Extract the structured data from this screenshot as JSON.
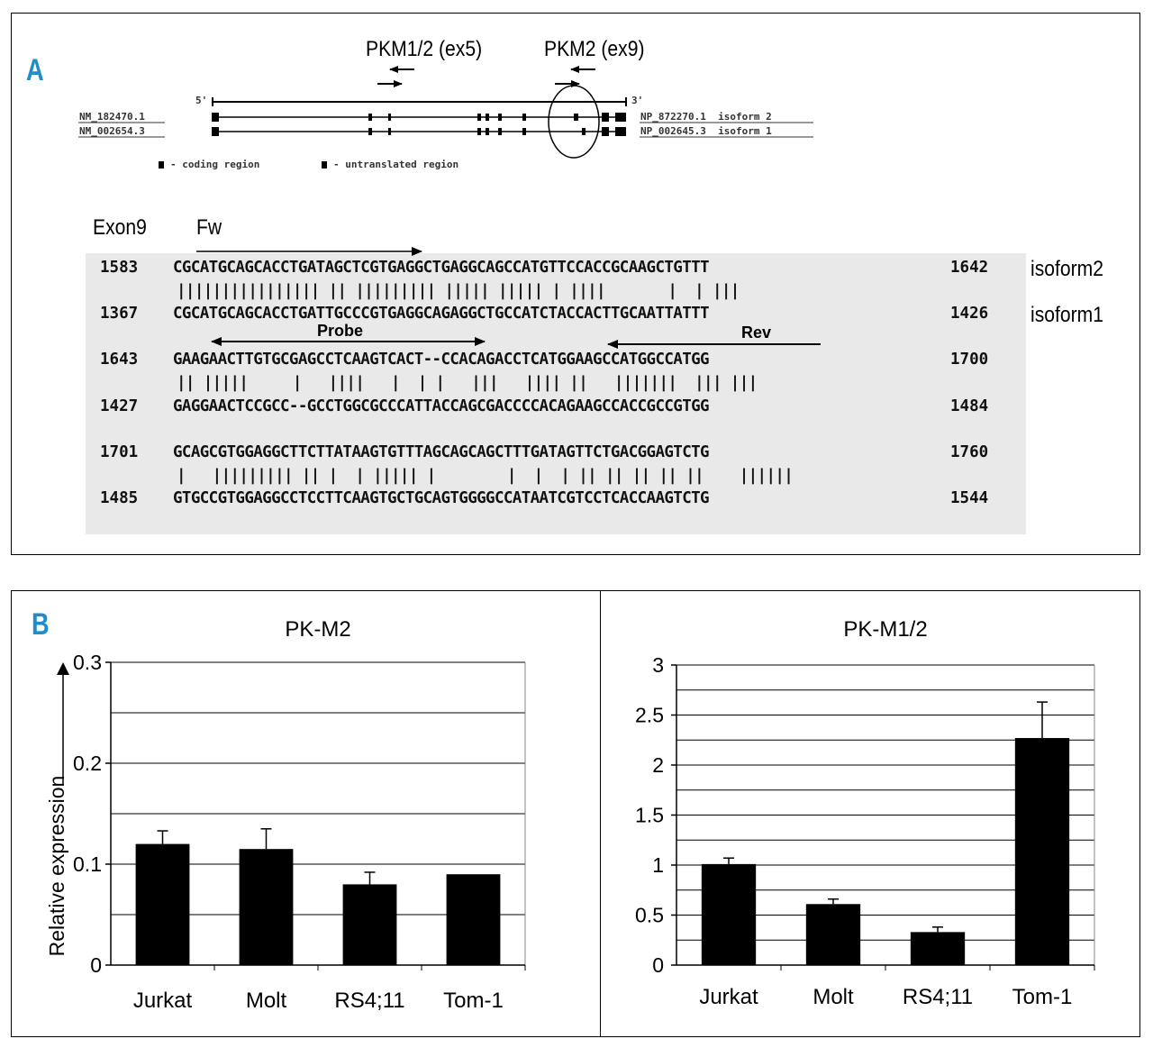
{
  "panelA": {
    "letter": "A",
    "primer_labels": [
      "PKM1/2 (ex5)",
      "PKM2 (ex9)"
    ],
    "five_prime": "5'",
    "three_prime": "3'",
    "transcripts": [
      {
        "left": "NM_182470.1",
        "right": "NP_872270.1  isoform 2"
      },
      {
        "left": "NM_002654.3",
        "right": "NP_002645.3  isoform 1"
      }
    ],
    "legend": {
      "coding": "- coding region",
      "untranslated": "- untranslated region"
    },
    "exon_label": "Exon9",
    "fw_label": "Fw",
    "probe_label": "Probe",
    "rev_label": "Rev",
    "isoform_labels": [
      "isoform2",
      "isoform1"
    ],
    "alignment": [
      {
        "top_start": "1583",
        "top_seq": "CGCATGCAGCACCTGATAGCTCGTGAGGCTGAGGCAGCCATGTTCCACCGCAAGCTGTTT",
        "top_end": "1642",
        "match": "|||||||||||||||| || ||||||||| ||||| ||||| | ||||       |  | |||",
        "bot_start": "1367",
        "bot_seq": "CGCATGCAGCACCTGATTGCCCGTGAGGCAGAGGCTGCCATCTACCACTTGCAATTATTT",
        "bot_end": "1426"
      },
      {
        "top_start": "1643",
        "top_seq": "GAAGAACTTGTGCGAGCCTCAAGTCACT--CCACAGACCTCATGGAAGCCATGGCCATGG",
        "top_end": "1700",
        "match": "|| |||||     |   ||||   |  | |   |||   |||| ||   |||||||  ||| |||",
        "bot_start": "1427",
        "bot_seq": "GAGGAACTCCGCC--GCCTGGCGCCCATTACCAGCGACCCCACAGAAGCCACCGCCGTGG",
        "bot_end": "1484"
      },
      {
        "top_start": "1701",
        "top_seq": "GCAGCGTGGAGGCTTCTTATAAGTGTTTAGCAGCAGCTTTGATAGTTCTGACGGAGTCTG",
        "top_end": "1760",
        "match": "|   ||||||||| || |  | ||||| |        |  |  | || || || || ||    ||||||",
        "bot_start": "1485",
        "bot_seq": "GTGCCGTGGAGGCCTCCTTCAAGTGCTGCAGTGGGGCCATAATCGTCCTCACCAAGTCTG",
        "bot_end": "1544"
      }
    ]
  },
  "panelB": {
    "letter": "B",
    "ylabel": "Relative expression"
  },
  "chart_data": [
    {
      "type": "bar",
      "title": "PK-M2",
      "categories": [
        "Jurkat",
        "Molt",
        "RS4;11",
        "Tom-1"
      ],
      "values": [
        0.12,
        0.115,
        0.08,
        0.09
      ],
      "errors": [
        0.013,
        0.02,
        0.012,
        0
      ],
      "ylim": [
        0,
        0.3
      ],
      "yticks": [
        0,
        0.1,
        0.2,
        0.3
      ],
      "ytick_labels": [
        "0",
        "0.1",
        "0.2",
        "0.3"
      ],
      "ylabel": "Relative expression",
      "xlabel": "",
      "grid": true
    },
    {
      "type": "bar",
      "title": "PK-M1/2",
      "categories": [
        "Jurkat",
        "Molt",
        "RS4;11",
        "Tom-1"
      ],
      "values": [
        1.01,
        0.61,
        0.33,
        2.27
      ],
      "errors": [
        0.06,
        0.05,
        0.05,
        0.36
      ],
      "ylim": [
        0,
        3
      ],
      "yticks": [
        0,
        0.5,
        1,
        1.5,
        2,
        2.5,
        3
      ],
      "ytick_labels": [
        "0",
        "0.5",
        "1",
        "1.5",
        "2",
        "2.5",
        "3"
      ],
      "ylabel": "",
      "xlabel": "",
      "grid": true
    }
  ]
}
